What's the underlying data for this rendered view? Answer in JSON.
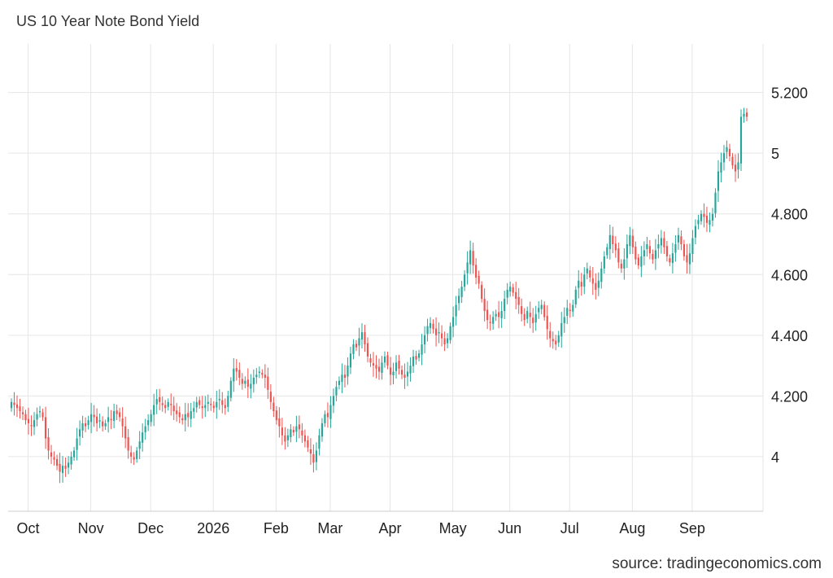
{
  "header": {
    "title": "US 10 Year Note Bond Yield"
  },
  "footer": {
    "source": "source: tradingeconomics.com"
  },
  "chart_data": {
    "type": "candlestick",
    "title": "US 10 Year Note Bond Yield",
    "xlabel": "",
    "ylabel": "",
    "ylim": [
      3.82,
      5.36
    ],
    "y_ticks": [
      {
        "value": 4.0,
        "label": "4"
      },
      {
        "value": 4.2,
        "label": "4.200"
      },
      {
        "value": 4.4,
        "label": "4.400"
      },
      {
        "value": 4.6,
        "label": "4.600"
      },
      {
        "value": 4.8,
        "label": "4.800"
      },
      {
        "value": 5.0,
        "label": "5"
      },
      {
        "value": 5.2,
        "label": "5.200"
      }
    ],
    "x_ticks": [
      {
        "label": "Oct",
        "index": 3
      },
      {
        "label": "Nov",
        "index": 25
      },
      {
        "label": "Dec",
        "index": 46
      },
      {
        "label": "2026",
        "index": 68
      },
      {
        "label": "Feb",
        "index": 90
      },
      {
        "label": "Mar",
        "index": 109
      },
      {
        "label": "Apr",
        "index": 130
      },
      {
        "label": "May",
        "index": 152
      },
      {
        "label": "Jun",
        "index": 172
      },
      {
        "label": "Jul",
        "index": 193
      },
      {
        "label": "Aug",
        "index": 215
      },
      {
        "label": "Sep",
        "index": 236
      }
    ],
    "colors": {
      "up": "#26a69a",
      "down": "#ef5350",
      "grid": "#e6e6e6"
    },
    "grid": true,
    "legend": "none",
    "closes": [
      4.18,
      4.17,
      4.16,
      4.15,
      4.14,
      4.12,
      4.11,
      4.1,
      4.12,
      4.14,
      4.15,
      4.13,
      4.06,
      4.02,
      4.0,
      3.99,
      3.97,
      3.95,
      3.97,
      3.96,
      3.98,
      4.0,
      4.02,
      4.06,
      4.09,
      4.11,
      4.1,
      4.12,
      4.14,
      4.13,
      4.11,
      4.12,
      4.1,
      4.11,
      4.13,
      4.12,
      4.15,
      4.14,
      4.13,
      4.1,
      4.06,
      4.02,
      4.0,
      3.99,
      4.02,
      4.05,
      4.08,
      4.1,
      4.12,
      4.14,
      4.17,
      4.19,
      4.18,
      4.17,
      4.16,
      4.18,
      4.17,
      4.15,
      4.14,
      4.13,
      4.12,
      4.14,
      4.13,
      4.15,
      4.16,
      4.18,
      4.17,
      4.16,
      4.17,
      4.18,
      4.17,
      4.16,
      4.18,
      4.19,
      4.17,
      4.16,
      4.2,
      4.25,
      4.29,
      4.28,
      4.26,
      4.24,
      4.25,
      4.23,
      4.24,
      4.26,
      4.27,
      4.28,
      4.27,
      4.26,
      4.22,
      4.18,
      4.15,
      4.12,
      4.1,
      4.07,
      4.05,
      4.07,
      4.09,
      4.08,
      4.1,
      4.09,
      4.07,
      4.05,
      4.03,
      4.01,
      3.98,
      4.02,
      4.07,
      4.11,
      4.14,
      4.13,
      4.17,
      4.2,
      4.23,
      4.25,
      4.27,
      4.26,
      4.3,
      4.34,
      4.37,
      4.36,
      4.39,
      4.41,
      4.37,
      4.33,
      4.31,
      4.3,
      4.29,
      4.28,
      4.31,
      4.33,
      4.3,
      4.27,
      4.28,
      4.31,
      4.29,
      4.27,
      4.26,
      4.28,
      4.3,
      4.33,
      4.32,
      4.34,
      4.37,
      4.4,
      4.43,
      4.44,
      4.42,
      4.4,
      4.41,
      4.39,
      4.37,
      4.39,
      4.43,
      4.46,
      4.5,
      4.53,
      4.56,
      4.6,
      4.64,
      4.68,
      4.63,
      4.59,
      4.57,
      4.52,
      4.48,
      4.45,
      4.44,
      4.46,
      4.47,
      4.46,
      4.48,
      4.52,
      4.55,
      4.56,
      4.54,
      4.52,
      4.5,
      4.47,
      4.45,
      4.48,
      4.46,
      4.44,
      4.47,
      4.49,
      4.5,
      4.46,
      4.42,
      4.39,
      4.38,
      4.37,
      4.4,
      4.44,
      4.46,
      4.49,
      4.48,
      4.5,
      4.55,
      4.58,
      4.56,
      4.6,
      4.62,
      4.59,
      4.57,
      4.55,
      4.58,
      4.62,
      4.66,
      4.69,
      4.73,
      4.7,
      4.68,
      4.64,
      4.62,
      4.65,
      4.7,
      4.73,
      4.69,
      4.65,
      4.63,
      4.66,
      4.68,
      4.7,
      4.67,
      4.65,
      4.68,
      4.7,
      4.72,
      4.69,
      4.66,
      4.64,
      4.67,
      4.7,
      4.73,
      4.7,
      4.66,
      4.64,
      4.67,
      4.72,
      4.76,
      4.78,
      4.8,
      4.79,
      4.77,
      4.78,
      4.8,
      4.87,
      4.94,
      4.97,
      5.0,
      5.02,
      4.99,
      4.96,
      4.94,
      4.97,
      5.12,
      5.13,
      5.12
    ]
  }
}
